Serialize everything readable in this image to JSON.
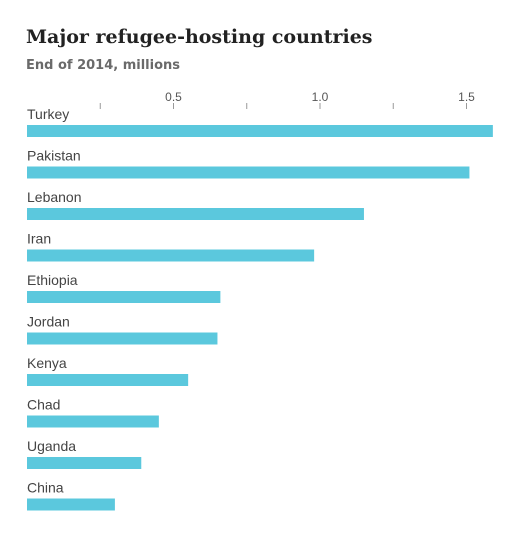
{
  "chart_data": {
    "type": "bar",
    "orientation": "horizontal",
    "title": "Major refugee-hosting countries",
    "subtitle": "End of 2014, millions",
    "categories": [
      "Turkey",
      "Pakistan",
      "Lebanon",
      "Iran",
      "Ethiopia",
      "Jordan",
      "Kenya",
      "Chad",
      "Uganda",
      "China"
    ],
    "values": [
      1.59,
      1.51,
      1.15,
      0.98,
      0.66,
      0.65,
      0.55,
      0.45,
      0.39,
      0.3
    ],
    "xlim": [
      0,
      1.6
    ],
    "ticks": [
      {
        "value": 0.25,
        "label": ""
      },
      {
        "value": 0.5,
        "label": "0.5"
      },
      {
        "value": 0.75,
        "label": ""
      },
      {
        "value": 1.0,
        "label": "1.0"
      },
      {
        "value": 1.25,
        "label": ""
      },
      {
        "value": 1.5,
        "label": "1.5"
      }
    ],
    "bar_color": "#5bc8dd",
    "grid": false,
    "legend": "none"
  }
}
